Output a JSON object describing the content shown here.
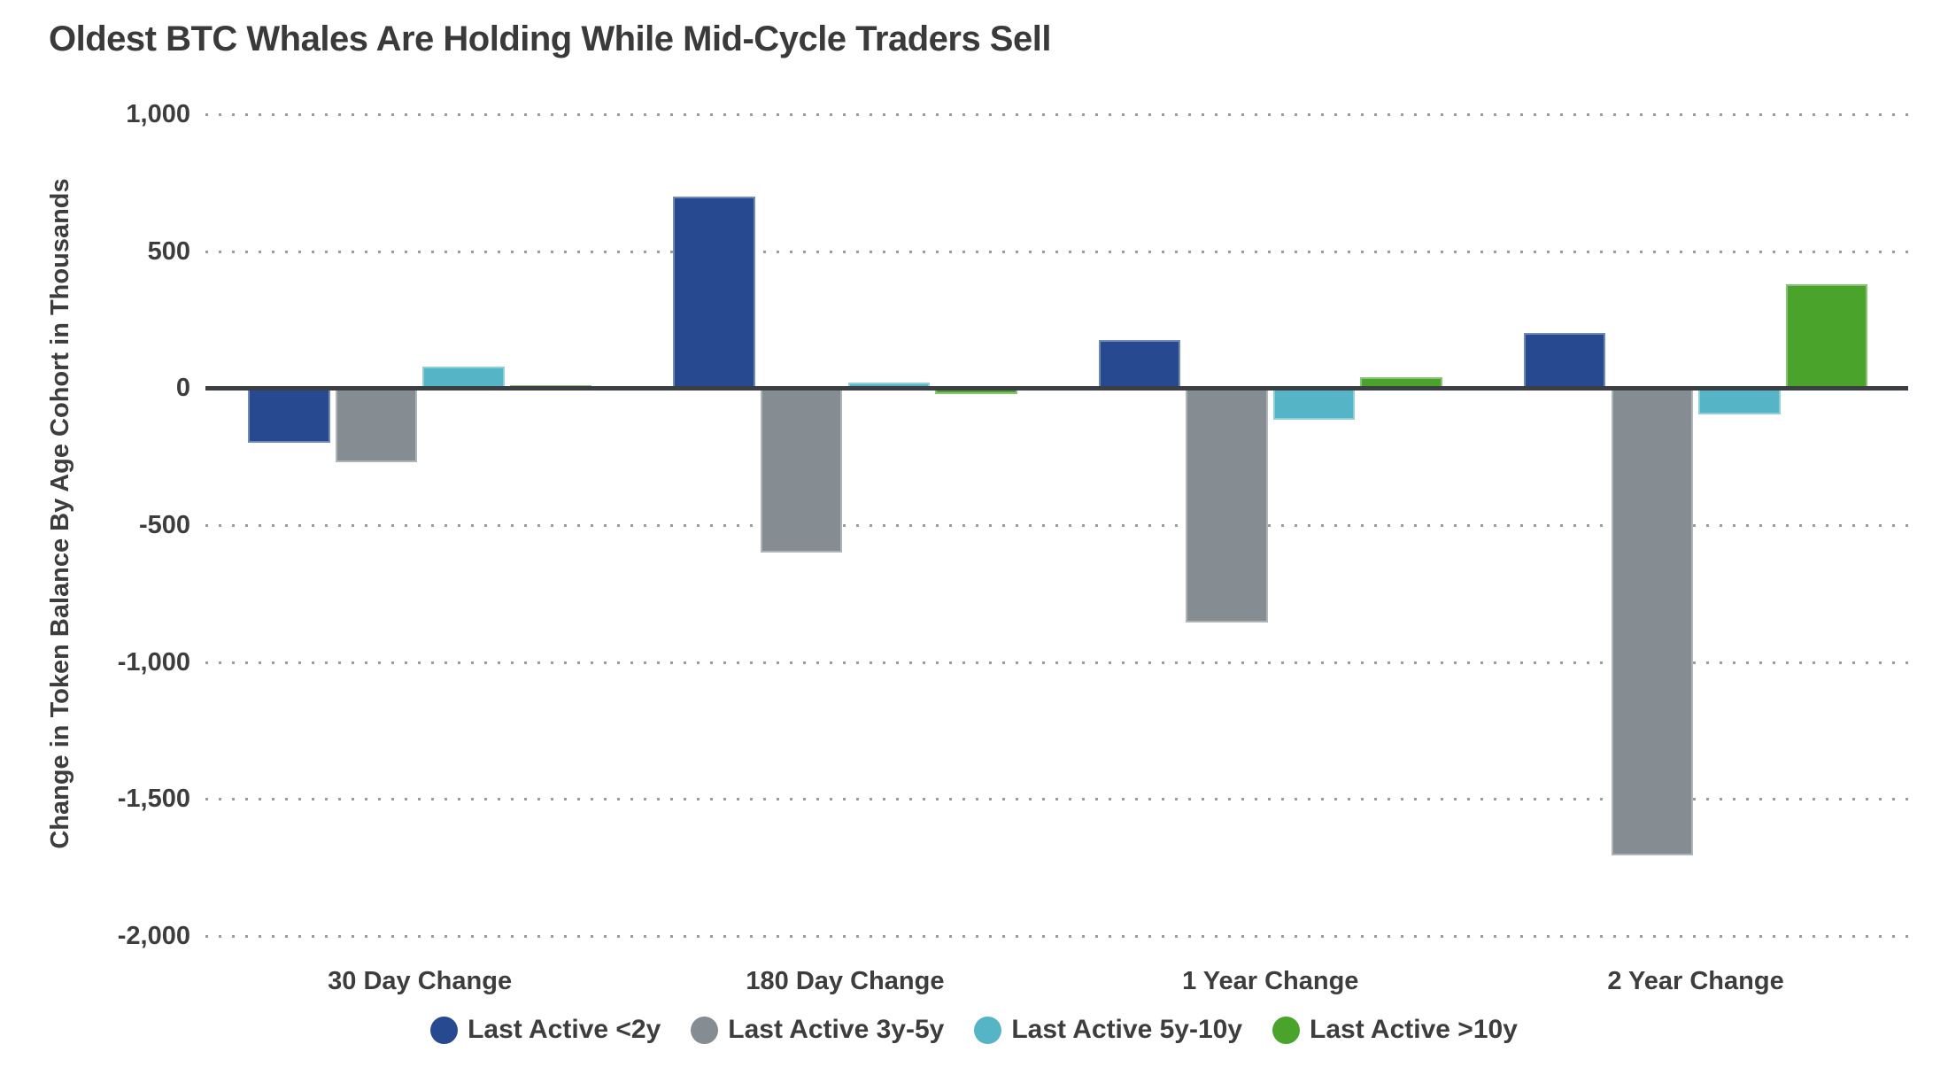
{
  "chart_data": {
    "type": "bar",
    "title": "Oldest BTC Whales Are Holding While Mid-Cycle Traders Sell",
    "xlabel": "",
    "ylabel": "Change in Token Balance By Age Cohort in Thousands",
    "categories": [
      "30 Day Change",
      "180 Day Change",
      "1 Year Change",
      "2 Year Change"
    ],
    "series": [
      {
        "name": "Last Active <2y",
        "color": "#27498f",
        "values": [
          -200,
          700,
          175,
          200
        ]
      },
      {
        "name": "Last Active 3y-5y",
        "color": "#858c92",
        "values": [
          -270,
          -600,
          -855,
          -1705
        ]
      },
      {
        "name": "Last Active 5y-10y",
        "color": "#55b4c6",
        "values": [
          80,
          20,
          -115,
          -95
        ]
      },
      {
        "name": "Last Active >10y",
        "color": "#4aa42c",
        "values": [
          10,
          -20,
          40,
          380
        ]
      }
    ],
    "ylim": [
      -2000,
      1000
    ],
    "yticks": [
      1000,
      500,
      0,
      -500,
      -1000,
      -1500,
      -2000
    ],
    "ytick_labels": [
      "1,000",
      "500",
      "0",
      "-500",
      "-1,000",
      "-1,500",
      "-2,000"
    ],
    "grid": "horizontal-dotted",
    "legend_position": "bottom"
  },
  "colors": {
    "background": "#ffffff",
    "text": "#3d3d3d",
    "grid_dots": "#9b9b9b",
    "zero_line": "#3b3f44"
  }
}
